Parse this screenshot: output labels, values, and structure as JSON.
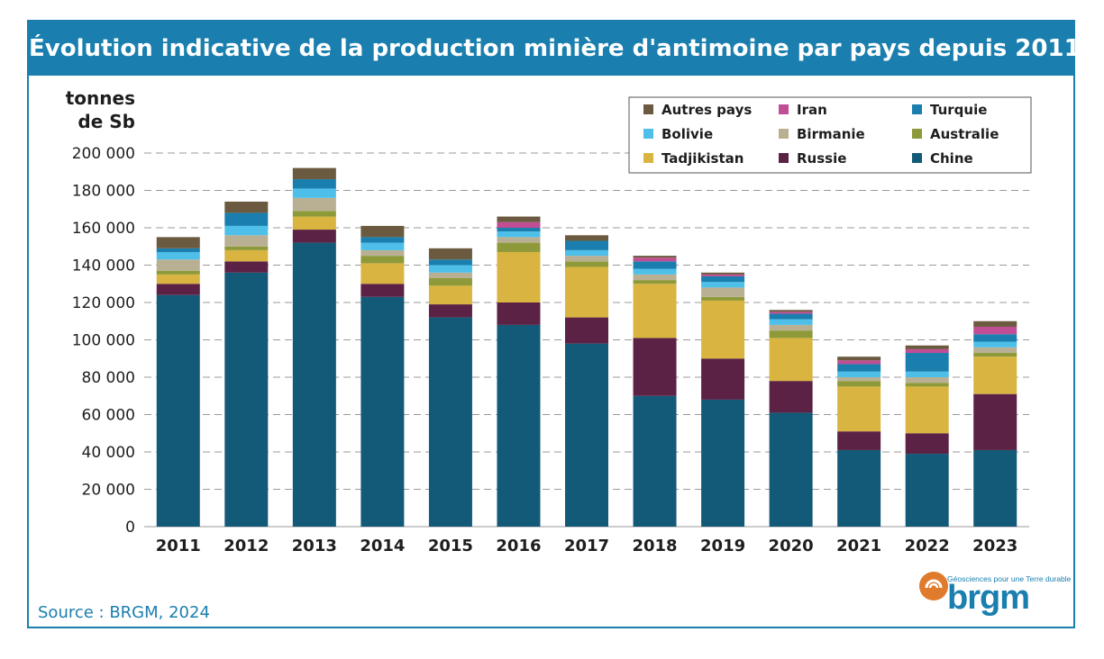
{
  "header": {
    "title": "Évolution indicative de la production minière d'antimoine par pays depuis 2011"
  },
  "footer": {
    "source": "Source : BRGM, 2024"
  },
  "logo": {
    "text": "brgm",
    "tagline": "Géosciences pour une Terre durable"
  },
  "chart_data": {
    "type": "bar",
    "stacked": true,
    "ylabel_lines": [
      "tonnes",
      "de Sb"
    ],
    "ylim": [
      0,
      200000
    ],
    "yticks": [
      0,
      20000,
      40000,
      60000,
      80000,
      100000,
      120000,
      140000,
      160000,
      180000,
      200000
    ],
    "ytick_labels": [
      "0",
      "20 000",
      "40 000",
      "60 000",
      "80 000",
      "100 000",
      "120 000",
      "140 000",
      "160 000",
      "180 000",
      "200 000"
    ],
    "grid": "horizontal dashed",
    "legend_position": "top-right",
    "categories": [
      "2011",
      "2012",
      "2013",
      "2014",
      "2015",
      "2016",
      "2017",
      "2018",
      "2019",
      "2020",
      "2021",
      "2022",
      "2023"
    ],
    "series": [
      {
        "name": "Chine",
        "color": "#135a78",
        "values": [
          124000,
          136000,
          152000,
          123000,
          112000,
          108000,
          98000,
          70000,
          68000,
          61000,
          41000,
          39000,
          41000
        ]
      },
      {
        "name": "Russie",
        "color": "#5b2245",
        "values": [
          6000,
          6000,
          7000,
          7000,
          7000,
          12000,
          14000,
          31000,
          22000,
          17000,
          10000,
          11000,
          30000
        ]
      },
      {
        "name": "Tadjikistan",
        "color": "#d9b440",
        "values": [
          5000,
          6000,
          7000,
          11000,
          10000,
          27000,
          27000,
          29000,
          31000,
          23000,
          24000,
          25000,
          20000
        ]
      },
      {
        "name": "Australie",
        "color": "#8e9a3a",
        "values": [
          2000,
          2000,
          3000,
          4000,
          4000,
          5000,
          3000,
          2000,
          2000,
          4000,
          3000,
          2000,
          2000
        ]
      },
      {
        "name": "Birmanie",
        "color": "#b9b093",
        "values": [
          6000,
          6000,
          7000,
          3000,
          3000,
          3000,
          3000,
          3000,
          5000,
          3000,
          2000,
          3000,
          3000
        ]
      },
      {
        "name": "Bolivie",
        "color": "#4dbfe9",
        "values": [
          4000,
          5000,
          5000,
          4000,
          4000,
          3000,
          3000,
          3000,
          3000,
          3000,
          3000,
          3000,
          3000
        ]
      },
      {
        "name": "Turquie",
        "color": "#1a7fae",
        "values": [
          2000,
          7000,
          5000,
          3000,
          3000,
          2000,
          5000,
          4000,
          3000,
          3000,
          4000,
          10000,
          4000
        ]
      },
      {
        "name": "Iran",
        "color": "#c14e95",
        "values": [
          0,
          0,
          0,
          0,
          0,
          3000,
          0,
          2000,
          1000,
          1000,
          2000,
          2000,
          4000
        ]
      },
      {
        "name": "Autres pays",
        "color": "#6b5a40",
        "values": [
          6000,
          6000,
          6000,
          6000,
          6000,
          3000,
          3000,
          1000,
          1000,
          1000,
          2000,
          2000,
          3000
        ]
      }
    ],
    "legend_order": [
      "Autres pays",
      "Iran",
      "Turquie",
      "Bolivie",
      "Birmanie",
      "Australie",
      "Tadjikistan",
      "Russie",
      "Chine"
    ]
  }
}
